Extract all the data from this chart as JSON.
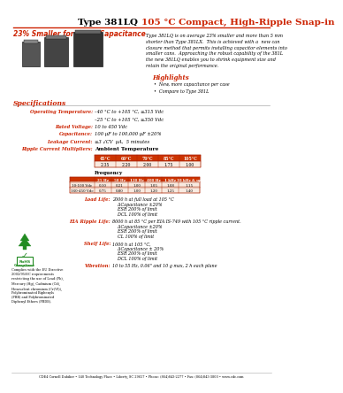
{
  "title_black": "Type 381LQ ",
  "title_red": "105 °C Compact, High-Ripple Snap-in",
  "subtitle": "23% Smaller for Same Capacitance",
  "body_text": "Type 381LQ is on average 23% smaller and more than 5 mm\nshorter than Type 381LX.  This is achieved with a  new can\nclosure method that permits installing capacitor elements into\nsmaller cans.  Approaching the robust capability of the 381L\nthe new 381LQ enables you to shrink equipment size and\nretain the original performance.",
  "highlights_title": "Highlights",
  "highlights": [
    "New, more capacitance per case",
    "Compare to Type 381L"
  ],
  "specs_title": "Specifications",
  "ambient_headers": [
    "45°C",
    "60°C",
    "70°C",
    "85°C",
    "105°C"
  ],
  "ambient_values": [
    "2.35",
    "2.20",
    "2.00",
    "1.75",
    "1.00"
  ],
  "freq_col_headers": [
    "25 Hz",
    "50 Hz",
    "120 Hz",
    "400 Hz",
    "1 kHz",
    "10 kHz & up"
  ],
  "freq_row1_label": "10-100 Vdc",
  "freq_row1_values": [
    "0.10",
    "0.21",
    "1.00",
    "1.05",
    "1.08",
    "1.15"
  ],
  "freq_row2_label": "160-450 Vdc",
  "freq_row2_values": [
    "0.75",
    "0.80",
    "1.00",
    "1.20",
    "1.25",
    "1.40"
  ],
  "load_life_label": "Load Life:",
  "load_life_lines": [
    "2000 h at full load at 105 °C",
    "ΔCapacitance ±20%",
    "ESR 200% of limit",
    "DCL 100% of limit"
  ],
  "eia_label": "EIA Ripple Life:",
  "eia_lines": [
    "8000 h at 85 °C per EIA IS-749 with 105 °C ripple current.",
    "ΔCapacitance ±20%",
    "ESR 200% of limit",
    "CL 100% of limit"
  ],
  "shelf_label": "Shelf Life:",
  "shelf_lines": [
    "1000 h at 105 °C,",
    "ΔCapacitance ± 20%",
    "ESR 200% of limit",
    "DCL 100% of limit"
  ],
  "vib_label": "Vibration:",
  "vib_lines": [
    "10 to 55 Hz, 0.06\" and 10 g max, 2 h each plane"
  ],
  "footer_text": "CDE4 Cornell Dubilier • 140 Technology Place • Liberty, SC 29657 • Phone: (864)843-2277 • Fax: (864)843-3800 • www.cde.com",
  "rohs_lines": [
    "Complies with the EU Directive",
    "2002/95/EC requirements",
    "restricting the use of Lead (Pb),",
    "Mercury (Hg), Cadmium (Cd),",
    "Hexavalent chromium (Cr(VI)),",
    "Polybrominated Biphenyls",
    "(PBB) and Polybrominated",
    "Diphenyl Ethers (PBDE)."
  ],
  "color_red": "#CC2200",
  "color_dark_red": "#AA1100",
  "bg_color": "#FFFFFF"
}
